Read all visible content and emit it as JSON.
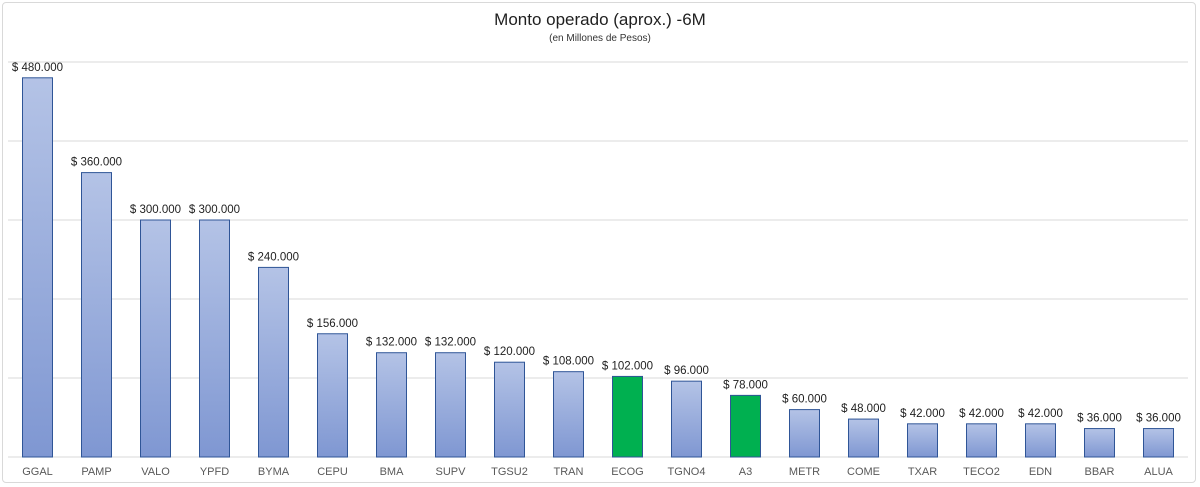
{
  "chart_data": {
    "type": "bar",
    "title": "Monto operado  (aprox.)  -6M",
    "subtitle": "(en Millones  de Pesos)",
    "xlabel": "",
    "ylabel": "",
    "ylim": [
      0,
      500000
    ],
    "grid": true,
    "categories": [
      "GGAL",
      "PAMP",
      "VALO",
      "YPFD",
      "BYMA",
      "CEPU",
      "BMA",
      "SUPV",
      "TGSU2",
      "TRAN",
      "ECOG",
      "TGNO4",
      "A3",
      "METR",
      "COME",
      "TXAR",
      "TECO2",
      "EDN",
      "BBAR",
      "ALUA"
    ],
    "values": [
      480000,
      360000,
      300000,
      300000,
      240000,
      156000,
      132000,
      132000,
      120000,
      108000,
      102000,
      96000,
      78000,
      60000,
      48000,
      42000,
      42000,
      42000,
      36000,
      36000
    ],
    "labels": [
      "$ 480.000",
      "$ 360.000",
      "$ 300.000",
      "$ 300.000",
      "$ 240.000",
      "$ 156.000",
      "$ 132.000",
      "$ 132.000",
      "$ 120.000",
      "$ 108.000",
      "$ 102.000",
      "$ 96.000",
      "$ 78.000",
      "$ 60.000",
      "$ 48.000",
      "$ 42.000",
      "$ 42.000",
      "$ 42.000",
      "$ 36.000",
      "$ 36.000"
    ],
    "highlight": [
      "ECOG",
      "A3"
    ],
    "colors": {
      "bar": "#8fa5d9",
      "bar_highlight": "#00b050",
      "grid": "#d9d9d9"
    }
  }
}
